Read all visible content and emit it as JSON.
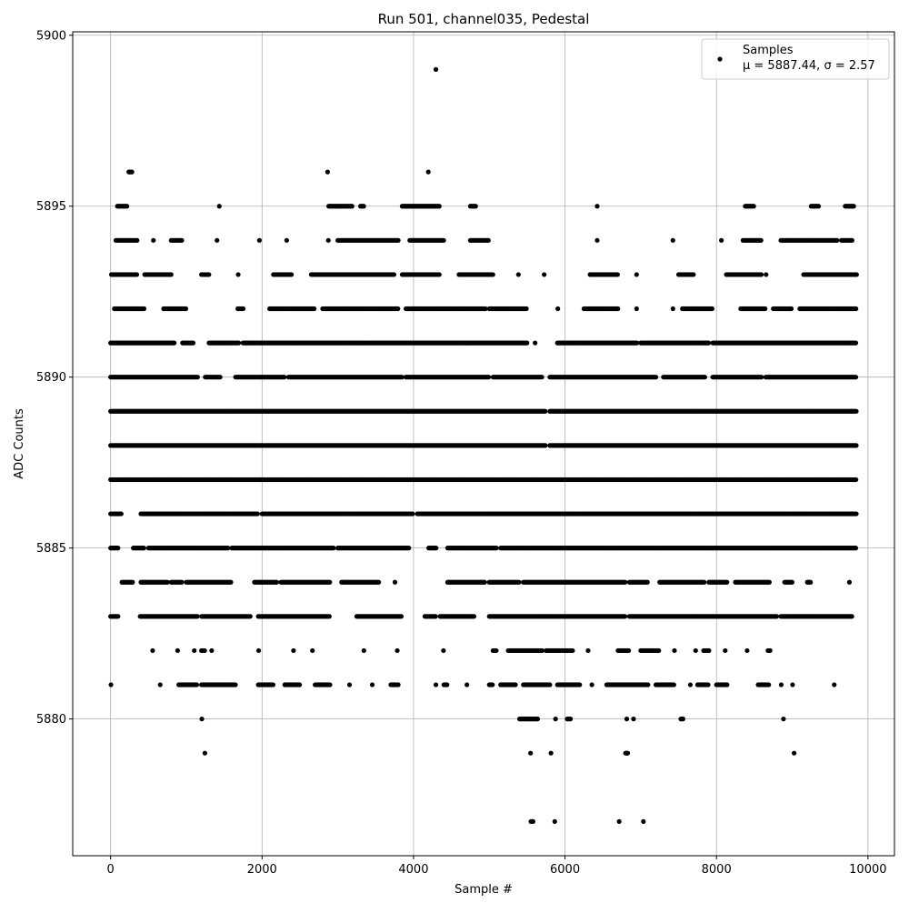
{
  "chart_data": {
    "type": "scatter",
    "title": "Run 501, channel035, Pedestal",
    "xlabel": "Sample #",
    "ylabel": "ADC Counts",
    "xlim": [
      -500,
      10350
    ],
    "ylim": [
      5876,
      5900.1
    ],
    "x_ticks": [
      0,
      2000,
      4000,
      6000,
      8000,
      10000
    ],
    "x_tick_labels": [
      "0",
      "2000",
      "4000",
      "6000",
      "8000",
      "10000"
    ],
    "y_ticks": [
      5880,
      5885,
      5890,
      5895,
      5900
    ],
    "y_tick_labels": [
      "5880",
      "5885",
      "5890",
      "5895",
      "5900"
    ],
    "grid": true,
    "legend": {
      "placement": "upper right",
      "entries": [
        {
          "label": "Samples",
          "stats": "μ = 5887.44, σ = 2.57"
        }
      ]
    },
    "marker_color": "#000000",
    "series": [
      {
        "name": "Samples",
        "level_ranges": [
          {
            "y": 5899,
            "x_ranges": [
              [
                4290,
                4300
              ]
            ]
          },
          {
            "y": 5896,
            "x_ranges": [
              [
                240,
                290
              ],
              [
                2860,
                2870
              ],
              [
                4190,
                4200
              ]
            ]
          },
          {
            "y": 5895,
            "x_ranges": [
              [
                90,
                220
              ],
              [
                1430,
                1440
              ],
              [
                2880,
                3200
              ],
              [
                3300,
                3350
              ],
              [
                3850,
                4350
              ],
              [
                4750,
                4820
              ],
              [
                6420,
                6430
              ],
              [
                8380,
                8500
              ],
              [
                9250,
                9350
              ],
              [
                9700,
                9820
              ]
            ]
          },
          {
            "y": 5894,
            "x_ranges": [
              [
                70,
                350
              ],
              [
                560,
                570
              ],
              [
                800,
                950
              ],
              [
                1400,
                1410
              ],
              [
                1960,
                1970
              ],
              [
                2320,
                2330
              ],
              [
                2870,
                2880
              ],
              [
                3000,
                3800
              ],
              [
                3950,
                4400
              ],
              [
                4750,
                5000
              ],
              [
                6420,
                6430
              ],
              [
                7420,
                7430
              ],
              [
                8060,
                8070
              ],
              [
                8350,
                8600
              ],
              [
                8850,
                9600
              ],
              [
                9650,
                9800
              ]
            ]
          },
          {
            "y": 5893,
            "x_ranges": [
              [
                10,
                350
              ],
              [
                450,
                800
              ],
              [
                1200,
                1300
              ],
              [
                1680,
                1690
              ],
              [
                2150,
                2400
              ],
              [
                2650,
                3000
              ],
              [
                3000,
                3750
              ],
              [
                3850,
                4350
              ],
              [
                4600,
                5050
              ],
              [
                5380,
                5390
              ],
              [
                5720,
                5730
              ],
              [
                6330,
                6700
              ],
              [
                6940,
                6950
              ],
              [
                7500,
                7700
              ],
              [
                8130,
                8600
              ],
              [
                8650,
                8660
              ],
              [
                9150,
                9850
              ]
            ]
          },
          {
            "y": 5892,
            "x_ranges": [
              [
                50,
                450
              ],
              [
                700,
                1000
              ],
              [
                1680,
                1750
              ],
              [
                2100,
                2700
              ],
              [
                2800,
                3800
              ],
              [
                3900,
                4950
              ],
              [
                5000,
                5500
              ],
              [
                5900,
                5910
              ],
              [
                6250,
                6700
              ],
              [
                6940,
                6950
              ],
              [
                7420,
                7430
              ],
              [
                7550,
                7950
              ],
              [
                8320,
                8650
              ],
              [
                8750,
                9000
              ],
              [
                9100,
                9850
              ]
            ]
          },
          {
            "y": 5891,
            "x_ranges": [
              [
                0,
                850
              ],
              [
                950,
                1100
              ],
              [
                1300,
                1700
              ],
              [
                1750,
                2400
              ],
              [
                2400,
                3300
              ],
              [
                3300,
                4700
              ],
              [
                4700,
                5500
              ],
              [
                5600,
                5610
              ],
              [
                5900,
                6950
              ],
              [
                7000,
                7900
              ],
              [
                7950,
                9850
              ]
            ]
          },
          {
            "y": 5890,
            "x_ranges": [
              [
                0,
                1150
              ],
              [
                1250,
                1450
              ],
              [
                1650,
                2300
              ],
              [
                2350,
                3850
              ],
              [
                3900,
                5000
              ],
              [
                5050,
                5700
              ],
              [
                5800,
                7200
              ],
              [
                7300,
                7850
              ],
              [
                7950,
                8600
              ],
              [
                8650,
                9850
              ]
            ]
          },
          {
            "y": 5889,
            "x_ranges": [
              [
                0,
                5750
              ],
              [
                5800,
                9850
              ]
            ]
          },
          {
            "y": 5888,
            "x_ranges": [
              [
                0,
                5750
              ],
              [
                5800,
                9850
              ]
            ]
          },
          {
            "y": 5887,
            "x_ranges": [
              [
                0,
                9850
              ]
            ]
          },
          {
            "y": 5886,
            "x_ranges": [
              [
                0,
                150
              ],
              [
                400,
                1950
              ],
              [
                2000,
                4000
              ],
              [
                4050,
                9850
              ]
            ]
          },
          {
            "y": 5885,
            "x_ranges": [
              [
                0,
                100
              ],
              [
                300,
                450
              ],
              [
                500,
                1550
              ],
              [
                1600,
                2950
              ],
              [
                3000,
                3950
              ],
              [
                4200,
                4300
              ],
              [
                4450,
                5100
              ],
              [
                5150,
                9850
              ]
            ]
          },
          {
            "y": 5884,
            "x_ranges": [
              [
                150,
                300
              ],
              [
                400,
                750
              ],
              [
                800,
                950
              ],
              [
                1000,
                1600
              ],
              [
                1900,
                2200
              ],
              [
                2250,
                2900
              ],
              [
                3050,
                3550
              ],
              [
                3750,
                3760
              ],
              [
                4450,
                4950
              ],
              [
                5000,
                5400
              ],
              [
                5450,
                6800
              ],
              [
                6850,
                7100
              ],
              [
                7250,
                7850
              ],
              [
                7900,
                8150
              ],
              [
                8250,
                8700
              ],
              [
                8900,
                9000
              ],
              [
                9200,
                9250
              ],
              [
                9750,
                9760
              ]
            ]
          },
          {
            "y": 5883,
            "x_ranges": [
              [
                0,
                100
              ],
              [
                390,
                1150
              ],
              [
                1200,
                1850
              ],
              [
                1950,
                2900
              ],
              [
                3250,
                3850
              ],
              [
                4150,
                4300
              ],
              [
                4350,
                4800
              ],
              [
                5000,
                6800
              ],
              [
                6850,
                8800
              ],
              [
                8850,
                9800
              ]
            ]
          },
          {
            "y": 5882,
            "x_ranges": [
              [
                550,
                560
              ],
              [
                880,
                890
              ],
              [
                1100,
                1110
              ],
              [
                1200,
                1250
              ],
              [
                1330,
                1340
              ],
              [
                1950,
                1960
              ],
              [
                2410,
                2420
              ],
              [
                2660,
                2670
              ],
              [
                3340,
                3350
              ],
              [
                3780,
                3790
              ],
              [
                4390,
                4400
              ],
              [
                5050,
                5100
              ],
              [
                5250,
                5700
              ],
              [
                5750,
                6100
              ],
              [
                6300,
                6310
              ],
              [
                6700,
                6850
              ],
              [
                7000,
                7250
              ],
              [
                7440,
                7450
              ],
              [
                7720,
                7730
              ],
              [
                7830,
                7900
              ],
              [
                8110,
                8120
              ],
              [
                8400,
                8410
              ],
              [
                8680,
                8720
              ]
            ]
          },
          {
            "y": 5881,
            "x_ranges": [
              [
                0,
                10
              ],
              [
                650,
                660
              ],
              [
                900,
                1150
              ],
              [
                1200,
                1650
              ],
              [
                1950,
                2150
              ],
              [
                2300,
                2500
              ],
              [
                2700,
                2900
              ],
              [
                3150,
                3160
              ],
              [
                3450,
                3460
              ],
              [
                3700,
                3800
              ],
              [
                4290,
                4300
              ],
              [
                4400,
                4450
              ],
              [
                4700,
                4710
              ],
              [
                5000,
                5050
              ],
              [
                5150,
                5350
              ],
              [
                5450,
                5800
              ],
              [
                5900,
                6200
              ],
              [
                6350,
                6360
              ],
              [
                6550,
                7100
              ],
              [
                7200,
                7450
              ],
              [
                7650,
                7660
              ],
              [
                7750,
                7900
              ],
              [
                8000,
                8150
              ],
              [
                8550,
                8700
              ],
              [
                8850,
                8860
              ],
              [
                9000,
                9010
              ],
              [
                9550,
                9560
              ]
            ]
          },
          {
            "y": 5880,
            "x_ranges": [
              [
                1200,
                1210
              ],
              [
                5400,
                5650
              ],
              [
                5870,
                5880
              ],
              [
                6030,
                6080
              ],
              [
                6810,
                6820
              ],
              [
                6900,
                6910
              ],
              [
                7530,
                7560
              ],
              [
                8880,
                8890
              ]
            ]
          },
          {
            "y": 5879,
            "x_ranges": [
              [
                1240,
                1250
              ],
              [
                5540,
                5550
              ],
              [
                5810,
                5820
              ],
              [
                6800,
                6830
              ],
              [
                9020,
                9030
              ]
            ]
          },
          {
            "y": 5877,
            "x_ranges": [
              [
                5550,
                5580
              ],
              [
                5860,
                5870
              ],
              [
                6710,
                6720
              ],
              [
                7030,
                7040
              ]
            ]
          }
        ]
      }
    ]
  }
}
